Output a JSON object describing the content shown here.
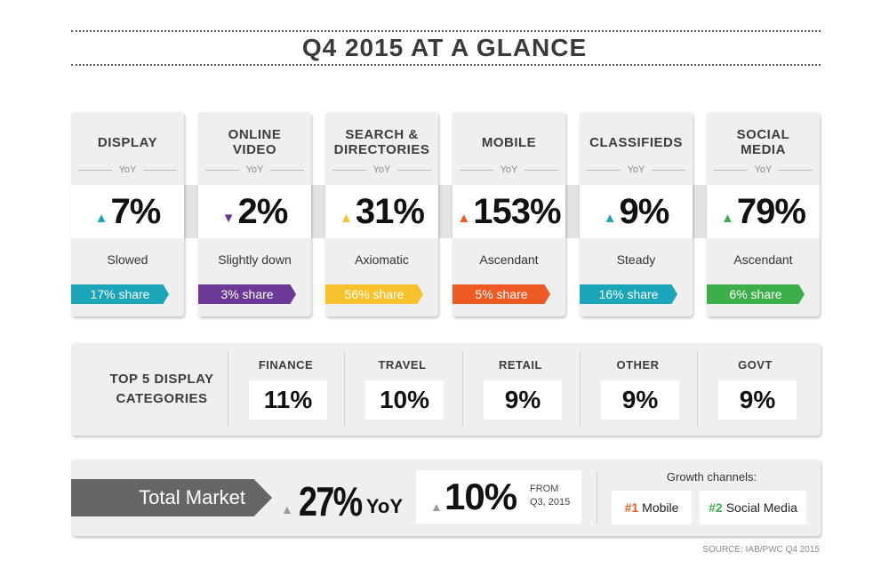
{
  "title": "Q4 2015 AT A GLANCE",
  "yoy_label": "YoY",
  "colors": {
    "up_teal": "#1aa6b8",
    "purple": "#6c3a96",
    "yellow": "#f6c12a",
    "orange": "#ef5a24",
    "green": "#3daf4a",
    "gray_arrow": "#666666"
  },
  "categories": [
    {
      "name": "DISPLAY",
      "direction": "up",
      "change": "7%",
      "description": "Slowed",
      "share": "17% share",
      "color": "#1aa6b8"
    },
    {
      "name": "ONLINE\nVIDEO",
      "direction": "down",
      "change": "2%",
      "description": "Slightly down",
      "share": "3% share",
      "color": "#6c3a96"
    },
    {
      "name": "SEARCH &\nDIRECTORIES",
      "direction": "up",
      "change": "31%",
      "description": "Axiomatic",
      "share": "56% share",
      "color": "#f6c12a"
    },
    {
      "name": "MOBILE",
      "direction": "up",
      "change": "153%",
      "description": "Ascendant",
      "share": "5% share",
      "color": "#ef5a24"
    },
    {
      "name": "CLASSIFIEDS",
      "direction": "up",
      "change": "9%",
      "description": "Steady",
      "share": "16% share",
      "color": "#1aa6b8"
    },
    {
      "name": "SOCIAL\nMEDIA",
      "direction": "up",
      "change": "79%",
      "description": "Ascendant",
      "share": "6% share",
      "color": "#3daf4a"
    }
  ],
  "top5": {
    "label": "TOP 5 DISPLAY\nCATEGORIES",
    "items": [
      {
        "name": "FINANCE",
        "value": "11%"
      },
      {
        "name": "TRAVEL",
        "value": "10%"
      },
      {
        "name": "RETAIL",
        "value": "9%"
      },
      {
        "name": "OTHER",
        "value": "9%"
      },
      {
        "name": "GOVT",
        "value": "9%"
      }
    ]
  },
  "total_market": {
    "label": "Total Market",
    "yoy_value": "27%",
    "yoy_unit": "YoY",
    "qoq_value": "10%",
    "qoq_from": "FROM\nQ3, 2015",
    "growth_label": "Growth channels:",
    "channels": [
      {
        "rank": "#1",
        "name": "Mobile",
        "color": "#ef5a24"
      },
      {
        "rank": "#2",
        "name": "Social Media",
        "color": "#3daf4a"
      }
    ]
  },
  "source": "SOURCE: IAB/PWC Q4 2015"
}
